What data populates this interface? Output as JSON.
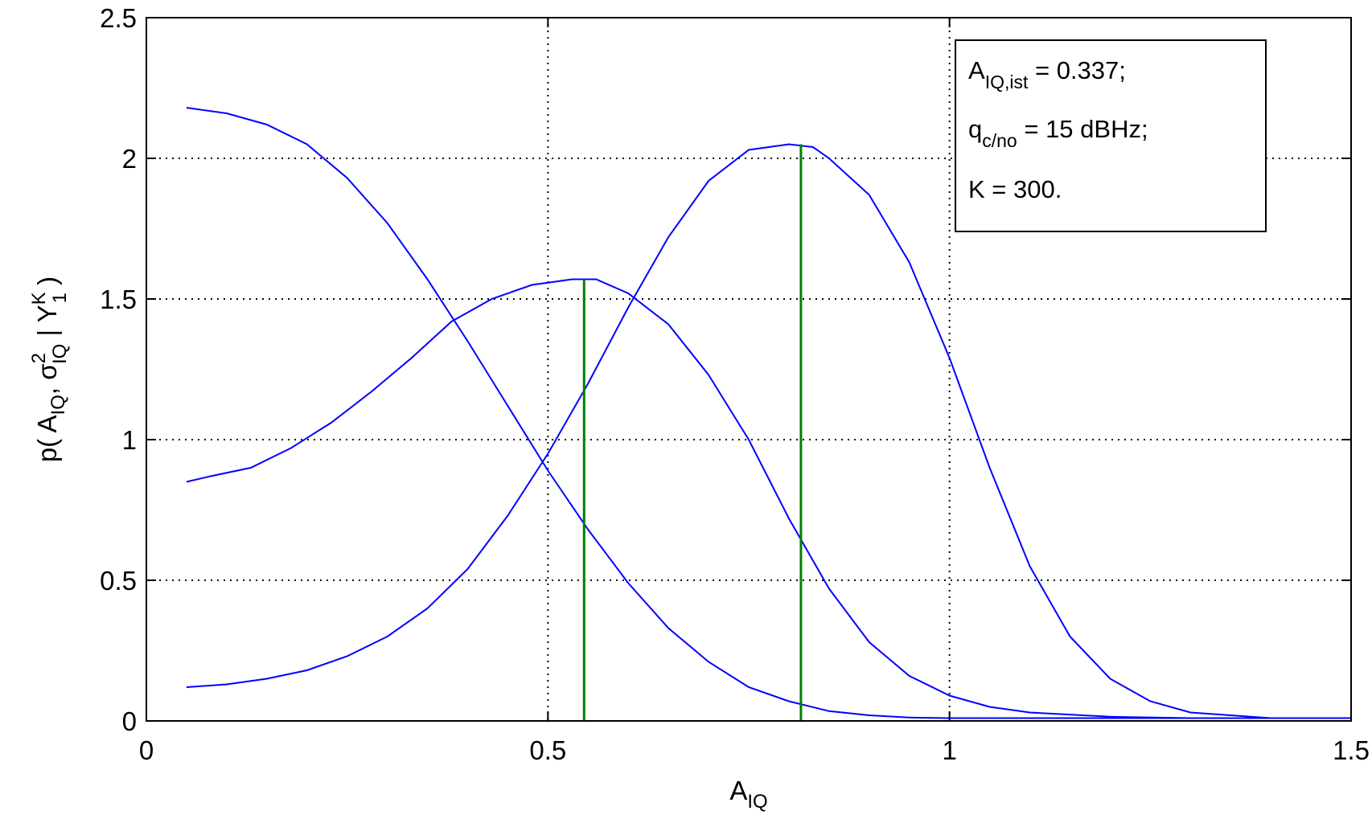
{
  "chart_data": {
    "type": "line",
    "title": "",
    "xlabel": {
      "main": "A",
      "sub": "IQ"
    },
    "ylabel": {
      "p": "p( A",
      "sub1": "IQ",
      "comma_sigma": ", σ",
      "sup2": "2",
      "sub2": "IQ",
      "bar_y": " | Y",
      "supK": "K",
      "sub3": "1",
      "close": " )"
    },
    "xlim": [
      0,
      1.5
    ],
    "ylim": [
      0,
      2.5
    ],
    "xticks": [
      0,
      0.5,
      1,
      1.5
    ],
    "xtick_labels": [
      "0",
      "0.5",
      "1",
      "1.5"
    ],
    "yticks": [
      0,
      0.5,
      1,
      1.5,
      2,
      2.5
    ],
    "ytick_labels": [
      "0",
      "0.5",
      "1",
      "1.5",
      "2",
      "2.5"
    ],
    "grid": true,
    "colors": {
      "curves": "#0000ff",
      "markers": "#008000",
      "grid": "#000000"
    },
    "series": [
      {
        "x": [
          0.05,
          0.1,
          0.15,
          0.2,
          0.25,
          0.3,
          0.35,
          0.4,
          0.45,
          0.5,
          0.55,
          0.6,
          0.65,
          0.7,
          0.75,
          0.8,
          0.85,
          0.9,
          0.95,
          1.0,
          1.05,
          1.1,
          1.2,
          1.3,
          1.4,
          1.5
        ],
        "y": [
          2.18,
          2.16,
          2.12,
          2.05,
          1.93,
          1.77,
          1.57,
          1.35,
          1.12,
          0.89,
          0.68,
          0.49,
          0.33,
          0.21,
          0.12,
          0.07,
          0.035,
          0.02,
          0.012,
          0.01,
          0.01,
          0.01,
          0.01,
          0.01,
          0.01,
          0.01
        ]
      },
      {
        "x": [
          0.05,
          0.08,
          0.13,
          0.18,
          0.23,
          0.28,
          0.33,
          0.38,
          0.43,
          0.48,
          0.53,
          0.56,
          0.6,
          0.65,
          0.7,
          0.75,
          0.8,
          0.85,
          0.9,
          0.95,
          1.0,
          1.05,
          1.1,
          1.2,
          1.3,
          1.4,
          1.5
        ],
        "y": [
          0.85,
          0.87,
          0.9,
          0.97,
          1.06,
          1.17,
          1.29,
          1.42,
          1.5,
          1.55,
          1.57,
          1.57,
          1.52,
          1.41,
          1.23,
          1.0,
          0.72,
          0.47,
          0.28,
          0.16,
          0.09,
          0.05,
          0.03,
          0.015,
          0.01,
          0.01,
          0.01
        ]
      },
      {
        "x": [
          0.05,
          0.1,
          0.15,
          0.2,
          0.25,
          0.3,
          0.35,
          0.4,
          0.45,
          0.5,
          0.55,
          0.6,
          0.65,
          0.7,
          0.75,
          0.8,
          0.83,
          0.85,
          0.9,
          0.95,
          1.0,
          1.05,
          1.1,
          1.15,
          1.2,
          1.25,
          1.3,
          1.35,
          1.4,
          1.5
        ],
        "y": [
          0.12,
          0.13,
          0.15,
          0.18,
          0.23,
          0.3,
          0.4,
          0.54,
          0.73,
          0.95,
          1.2,
          1.47,
          1.72,
          1.92,
          2.03,
          2.05,
          2.04,
          2.0,
          1.87,
          1.63,
          1.29,
          0.9,
          0.55,
          0.3,
          0.15,
          0.07,
          0.03,
          0.02,
          0.01,
          0.01
        ]
      }
    ],
    "vertical_markers": [
      {
        "x": 0.545,
        "y": 1.57
      },
      {
        "x": 0.815,
        "y": 2.05
      }
    ],
    "annotation": {
      "placement": "top-right",
      "lines": [
        {
          "base": "A",
          "sub": "IQ,ist",
          "rest": " = 0.337;"
        },
        {
          "base": "q",
          "sub": "c/no",
          "rest": " = 15 dBHz;"
        },
        {
          "base": "K = 300.",
          "sub": "",
          "rest": ""
        }
      ]
    }
  }
}
